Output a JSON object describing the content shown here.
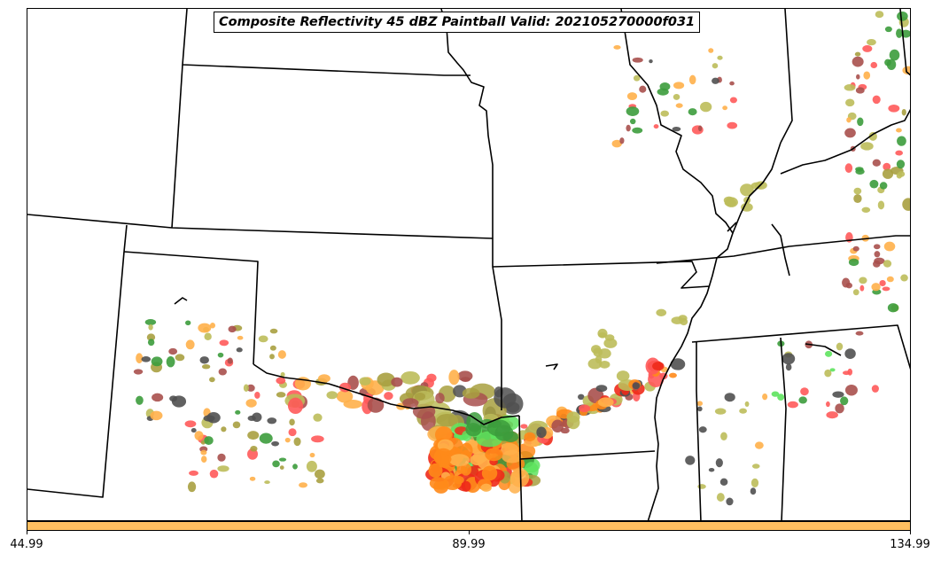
{
  "title": "Composite Reflectivity 45 dBZ Paintball Valid: 202105270000f031",
  "colorbar": {
    "color": "#ffbf60",
    "ticks": [
      "44.99",
      "89.99",
      "134.99"
    ]
  },
  "paintball_colors": {
    "brown": "#a8504d",
    "olive": "#a8a040",
    "khaki": "#bcbc5a",
    "orange": "#ff8a1a",
    "light_orange": "#ffb04a",
    "red": "#ee2a1a",
    "pink_red": "#ff5a5a",
    "green": "#3c9c3c",
    "light_green": "#5ee35e",
    "dark_gray": "#505050"
  }
}
